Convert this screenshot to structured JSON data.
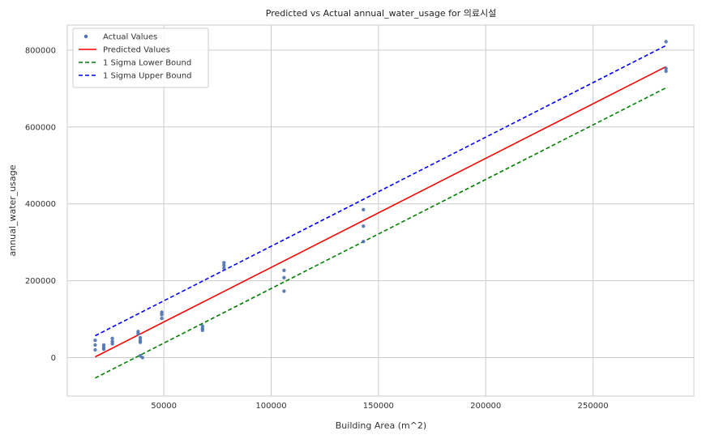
{
  "chart_data": {
    "type": "scatter",
    "title": "Predicted vs Actual annual_water_usage for 의료시설",
    "xlabel": "Building Area (m^2)",
    "ylabel": "annual_water_usage",
    "xlim": [
      5000,
      297000
    ],
    "ylim": [
      -100000,
      865000
    ],
    "xticks": [
      50000,
      100000,
      150000,
      200000,
      250000
    ],
    "yticks": [
      0,
      200000,
      400000,
      600000,
      800000
    ],
    "xtick_labels": [
      "50000",
      "100000",
      "150000",
      "200000",
      "250000"
    ],
    "ytick_labels": [
      "0",
      "200000",
      "400000",
      "600000",
      "800000"
    ],
    "grid": true,
    "legend_position": "top-left",
    "series": [
      {
        "name": "Actual Values",
        "kind": "points",
        "color": "#4C72B0",
        "points": [
          [
            18000,
            45000
          ],
          [
            18000,
            33000
          ],
          [
            18000,
            20000
          ],
          [
            22000,
            33000
          ],
          [
            22000,
            27000
          ],
          [
            22000,
            22000
          ],
          [
            26000,
            50000
          ],
          [
            26000,
            42000
          ],
          [
            26000,
            36000
          ],
          [
            38000,
            68000
          ],
          [
            38000,
            62000
          ],
          [
            39000,
            52000
          ],
          [
            39000,
            45000
          ],
          [
            39000,
            40000
          ],
          [
            39000,
            5000
          ],
          [
            40000,
            0
          ],
          [
            49000,
            118000
          ],
          [
            49000,
            112000
          ],
          [
            49000,
            102000
          ],
          [
            68000,
            82000
          ],
          [
            68000,
            76000
          ],
          [
            68000,
            71000
          ],
          [
            78000,
            247000
          ],
          [
            78000,
            240000
          ],
          [
            78000,
            233000
          ],
          [
            106000,
            227000
          ],
          [
            106000,
            208000
          ],
          [
            106000,
            173000
          ],
          [
            143000,
            385000
          ],
          [
            143000,
            342000
          ],
          [
            143000,
            302000
          ],
          [
            284000,
            822000
          ],
          [
            284000,
            752000
          ],
          [
            284000,
            745000
          ]
        ]
      },
      {
        "name": "Predicted Values",
        "kind": "line",
        "color": "#ff0000",
        "dash": "solid",
        "points": [
          [
            18000,
            2000
          ],
          [
            284000,
            757000
          ]
        ]
      },
      {
        "name": "1 Sigma Lower Bound",
        "kind": "line",
        "color": "#008000",
        "dash": "dashed",
        "points": [
          [
            18000,
            -53000
          ],
          [
            284000,
            702000
          ]
        ]
      },
      {
        "name": "1 Sigma Upper Bound",
        "kind": "line",
        "color": "#0000ff",
        "dash": "dashed",
        "points": [
          [
            18000,
            57000
          ],
          [
            284000,
            812000
          ]
        ]
      }
    ]
  }
}
